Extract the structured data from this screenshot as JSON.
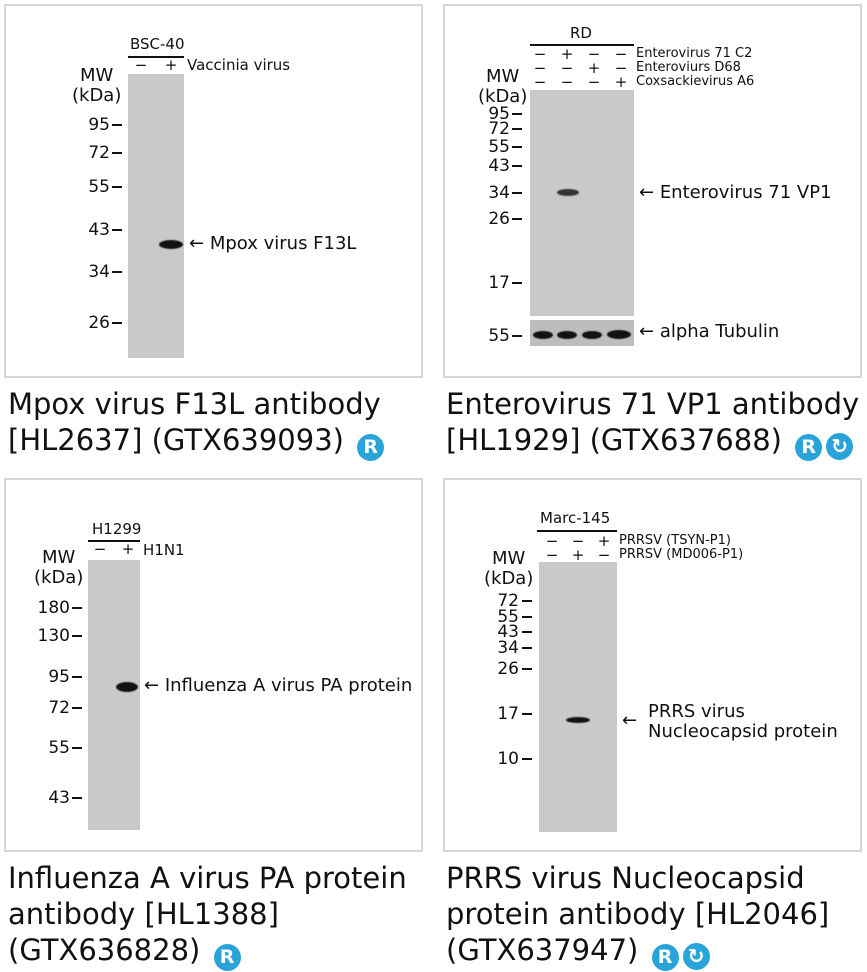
{
  "panels": [
    {
      "cell_line": "BSC-40",
      "rows": [
        {
          "label": "Vaccinia virus",
          "signs": [
            "−",
            "+"
          ]
        }
      ],
      "mw_title": [
        "MW",
        "(kDa)"
      ],
      "markers": [
        "95",
        "72",
        "55",
        "43",
        "34",
        "26"
      ],
      "bands": [
        {
          "label": "Mpox virus F13L"
        }
      ],
      "caption_lines": [
        "Mpox virus F13L antibody",
        "[HL2637] (GTX639093)"
      ],
      "badges": [
        "R"
      ]
    },
    {
      "cell_line": "RD",
      "rows": [
        {
          "label": "Enterovirus 71 C2",
          "signs": [
            "−",
            "+",
            "−",
            "−"
          ]
        },
        {
          "label": "Enteroviurs D68",
          "signs": [
            "−",
            "−",
            "+",
            "−"
          ]
        },
        {
          "label": "Coxsackievirus A6",
          "signs": [
            "−",
            "−",
            "−",
            "+"
          ]
        }
      ],
      "mw_title": [
        "MW",
        "(kDa)"
      ],
      "markers": [
        "95",
        "72",
        "55",
        "43",
        "34",
        "26",
        "17"
      ],
      "loading_marker": "55",
      "bands": [
        {
          "label": "Enterovirus 71 VP1"
        },
        {
          "label": "alpha Tubulin"
        }
      ],
      "caption_lines": [
        "Enterovirus 71 VP1 antibody",
        "[HL1929] (GTX637688)"
      ],
      "badges": [
        "R",
        "cycle"
      ]
    },
    {
      "cell_line": "H1299",
      "rows": [
        {
          "label": "H1N1",
          "signs": [
            "−",
            "+"
          ]
        }
      ],
      "mw_title": [
        "MW",
        "(kDa)"
      ],
      "markers": [
        "180",
        "130",
        "95",
        "72",
        "55",
        "43"
      ],
      "bands": [
        {
          "label": "Influenza A virus PA protein"
        }
      ],
      "caption_lines": [
        "Influenza A virus PA protein",
        "antibody [HL1388]",
        "(GTX636828)"
      ],
      "badges": [
        "R"
      ]
    },
    {
      "cell_line": "Marc-145",
      "rows": [
        {
          "label": "PRRSV (TSYN-P1)",
          "signs": [
            "−",
            "−",
            "+"
          ]
        },
        {
          "label": "PRRSV (MD006-P1)",
          "signs": [
            "−",
            "+",
            "−"
          ]
        }
      ],
      "mw_title": [
        "MW",
        "(kDa)"
      ],
      "markers": [
        "72",
        "55",
        "43",
        "34",
        "26",
        "17",
        "10"
      ],
      "bands": [
        {
          "label_lines": [
            "PRRS virus",
            "Nucleocapsid protein"
          ]
        }
      ],
      "caption_lines": [
        "PRRS virus Nucleocapsid",
        "protein antibody [HL2046]",
        "(GTX637947)"
      ],
      "badges": [
        "R",
        "cycle"
      ]
    }
  ],
  "badge_glyphs": {
    "R": "R",
    "cycle": "↻"
  },
  "colors": {
    "band": "#121212",
    "blot": "#c9c9c9",
    "badge": "#2aa3d8",
    "border": "#d6d6d6"
  }
}
